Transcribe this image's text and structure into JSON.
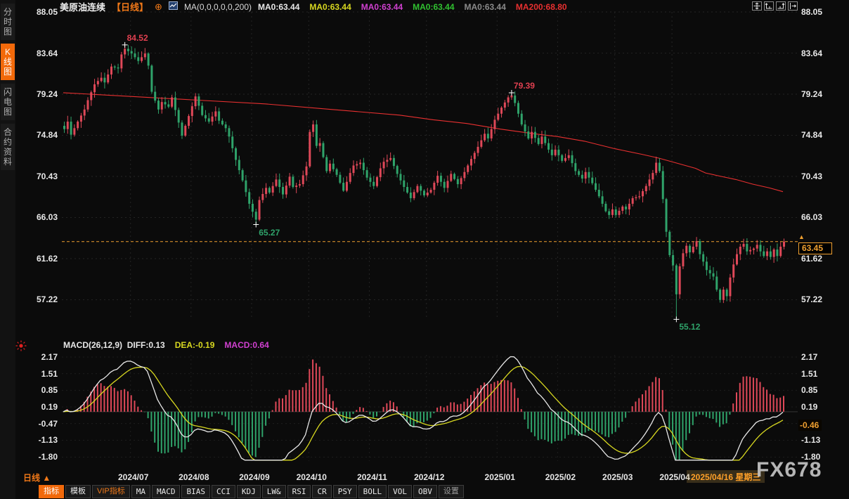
{
  "header": {
    "symbol": "美原油连续",
    "period_tag": "【日线】",
    "plus_icon": "⊕",
    "ma_summary": "MA(0,0,0,0,0,200)",
    "ma_values": [
      {
        "text": "MA0:63.44",
        "color": "#e8e8e8"
      },
      {
        "text": "MA0:63.44",
        "color": "#d8d820"
      },
      {
        "text": "MA0:63.44",
        "color": "#d040d0"
      },
      {
        "text": "MA0:63.44",
        "color": "#30c030"
      },
      {
        "text": "MA0:63.44",
        "color": "#8a8a8a"
      },
      {
        "text": "MA200:68.80",
        "color": "#e83030"
      }
    ],
    "top_right_icons": [
      "move-crosshair-icon",
      "axis-left-icon",
      "axis-right-icon",
      "exit-right-icon"
    ]
  },
  "sidebar": {
    "items": [
      {
        "label": "分时图",
        "active": false
      },
      {
        "label": "K线图",
        "active": true
      },
      {
        "label": "闪电图",
        "active": false
      },
      {
        "label": "合约资料",
        "active": false
      }
    ]
  },
  "macd_header": {
    "formula": "MACD(26,12,9)",
    "diff_label": "DIFF:0.13",
    "dea_label": "DEA:-0.19",
    "macd_label": "MACD:0.64",
    "diff_color": "#e8e8e8",
    "dea_color": "#d8d820",
    "macd_color": "#d040d0"
  },
  "price_tag": {
    "value": "63.45"
  },
  "macd_tag": {
    "value": "-0.46"
  },
  "date_tooltip": "2025/04/16 星期三",
  "watermark": "FX678",
  "bottom": {
    "period_label": "日线",
    "period_arrow": "▲",
    "items": [
      {
        "label": "指标",
        "style": "active"
      },
      {
        "label": "模板",
        "style": "normal"
      },
      {
        "label": "VIP指标",
        "style": "vip"
      },
      {
        "label": "MA",
        "style": "mono"
      },
      {
        "label": "MACD",
        "style": "mono"
      },
      {
        "label": "BIAS",
        "style": "mono"
      },
      {
        "label": "CCI",
        "style": "mono"
      },
      {
        "label": "KDJ",
        "style": "mono"
      },
      {
        "label": "LW&",
        "style": "mono"
      },
      {
        "label": "RSI",
        "style": "mono"
      },
      {
        "label": "CR",
        "style": "mono"
      },
      {
        "label": "PSY",
        "style": "mono"
      },
      {
        "label": "BOLL",
        "style": "mono"
      },
      {
        "label": "VOL",
        "style": "mono"
      },
      {
        "label": "OBV",
        "style": "mono"
      },
      {
        "label": "设置",
        "style": "dim"
      }
    ]
  },
  "chart_data": {
    "type": "candlestick+macd",
    "title": "美原油连续 日线 (WTI crude continuous, daily)",
    "x_ticks": [
      {
        "index": 20,
        "label": "2024/07"
      },
      {
        "index": 38,
        "label": "2024/08"
      },
      {
        "index": 56,
        "label": "2024/09"
      },
      {
        "index": 73,
        "label": "2024/10"
      },
      {
        "index": 91,
        "label": "2024/11"
      },
      {
        "index": 108,
        "label": "2024/12"
      },
      {
        "index": 129,
        "label": "2025/01"
      },
      {
        "index": 147,
        "label": "2025/02"
      },
      {
        "index": 164,
        "label": "2025/03"
      },
      {
        "index": 181,
        "label": "2025/04"
      }
    ],
    "main": {
      "y_ticks": [
        88.05,
        83.64,
        79.24,
        74.84,
        70.43,
        66.03,
        61.62,
        57.22
      ],
      "last_price": 63.45,
      "up_color": "#df4858",
      "down_color": "#2fa36a",
      "last_price_line_color": "#f0a030",
      "num_candles": 215,
      "close_anchors": [
        [
          0,
          75.5
        ],
        [
          1,
          76.3
        ],
        [
          2,
          74.9
        ],
        [
          4,
          76.3
        ],
        [
          6,
          77.6
        ],
        [
          7,
          78.6
        ],
        [
          9,
          80.3
        ],
        [
          11,
          81.0
        ],
        [
          12,
          80.5
        ],
        [
          14,
          82.2
        ],
        [
          16,
          82.0
        ],
        [
          17,
          83.5
        ],
        [
          18,
          84.1
        ],
        [
          20,
          83.6
        ],
        [
          22,
          82.8
        ],
        [
          24,
          83.6
        ],
        [
          25,
          82.3
        ],
        [
          26,
          79.5
        ],
        [
          28,
          77.6
        ],
        [
          29,
          78.4
        ],
        [
          31,
          77.9
        ],
        [
          32,
          78.9
        ],
        [
          34,
          76.2
        ],
        [
          35,
          74.8
        ],
        [
          37,
          76.9
        ],
        [
          39,
          79.0
        ],
        [
          41,
          77.0
        ],
        [
          43,
          76.3
        ],
        [
          45,
          77.4
        ],
        [
          46,
          76.4
        ],
        [
          48,
          75.6
        ],
        [
          49,
          74.7
        ],
        [
          51,
          72.2
        ],
        [
          53,
          70.0
        ],
        [
          55,
          67.5
        ],
        [
          57,
          65.8
        ],
        [
          58,
          67.9
        ],
        [
          60,
          69.2
        ],
        [
          61,
          68.7
        ],
        [
          63,
          70.1
        ],
        [
          65,
          68.5
        ],
        [
          67,
          70.4
        ],
        [
          68,
          69.3
        ],
        [
          70,
          69.6
        ],
        [
          72,
          71.5
        ],
        [
          73,
          75.2
        ],
        [
          74,
          76.0
        ],
        [
          75,
          73.7
        ],
        [
          76,
          74.0
        ],
        [
          78,
          71.0
        ],
        [
          79,
          71.8
        ],
        [
          81,
          70.6
        ],
        [
          83,
          68.9
        ],
        [
          85,
          70.8
        ],
        [
          86,
          71.6
        ],
        [
          88,
          71.9
        ],
        [
          90,
          70.3
        ],
        [
          92,
          69.4
        ],
        [
          94,
          71.3
        ],
        [
          95,
          72.0
        ],
        [
          97,
          72.4
        ],
        [
          99,
          70.7
        ],
        [
          101,
          69.3
        ],
        [
          103,
          68.1
        ],
        [
          105,
          69.4
        ],
        [
          107,
          68.4
        ],
        [
          109,
          69.0
        ],
        [
          111,
          70.5
        ],
        [
          113,
          69.2
        ],
        [
          115,
          70.7
        ],
        [
          117,
          69.6
        ],
        [
          119,
          70.9
        ],
        [
          121,
          72.3
        ],
        [
          123,
          73.6
        ],
        [
          125,
          75.0
        ],
        [
          126,
          74.5
        ],
        [
          128,
          76.5
        ],
        [
          130,
          77.8
        ],
        [
          132,
          78.9
        ],
        [
          133,
          79.1
        ],
        [
          134,
          78.3
        ],
        [
          136,
          76.0
        ],
        [
          138,
          74.5
        ],
        [
          139,
          75.2
        ],
        [
          141,
          73.9
        ],
        [
          142,
          74.7
        ],
        [
          144,
          73.3
        ],
        [
          145,
          72.7
        ],
        [
          146,
          73.3
        ],
        [
          148,
          72.1
        ],
        [
          150,
          72.7
        ],
        [
          152,
          71.0
        ],
        [
          154,
          70.2
        ],
        [
          155,
          70.9
        ],
        [
          157,
          69.7
        ],
        [
          159,
          68.3
        ],
        [
          161,
          66.7
        ],
        [
          162,
          66.3
        ],
        [
          163,
          66.9
        ],
        [
          164,
          66.3
        ],
        [
          166,
          67.2
        ],
        [
          167,
          66.9
        ],
        [
          169,
          68.1
        ],
        [
          171,
          68.3
        ],
        [
          173,
          69.4
        ],
        [
          175,
          70.8
        ],
        [
          176,
          71.9
        ],
        [
          177,
          71.0
        ],
        [
          178,
          68.0
        ],
        [
          179,
          64.5
        ],
        [
          180,
          62.0
        ],
        [
          181,
          60.9
        ],
        [
          182,
          57.8
        ],
        [
          183,
          60.8
        ],
        [
          184,
          62.2
        ],
        [
          185,
          63.0
        ],
        [
          186,
          62.3
        ],
        [
          187,
          62.9
        ],
        [
          188,
          63.5
        ],
        [
          189,
          62.1
        ],
        [
          190,
          61.3
        ],
        [
          191,
          60.4
        ],
        [
          193,
          59.7
        ],
        [
          194,
          58.3
        ],
        [
          195,
          57.2
        ],
        [
          196,
          58.3
        ],
        [
          197,
          57.6
        ],
        [
          198,
          59.6
        ],
        [
          199,
          61.0
        ],
        [
          200,
          62.1
        ],
        [
          201,
          62.9
        ],
        [
          202,
          63.2
        ],
        [
          203,
          62.4
        ],
        [
          205,
          62.7
        ],
        [
          206,
          63.1
        ],
        [
          207,
          62.4
        ],
        [
          208,
          61.9
        ],
        [
          209,
          62.4
        ],
        [
          210,
          61.8
        ],
        [
          211,
          62.6
        ],
        [
          212,
          61.9
        ],
        [
          213,
          62.9
        ],
        [
          214,
          63.45
        ]
      ],
      "annotations": [
        {
          "index": 18,
          "value": 84.52,
          "kind": "high",
          "label": "84.52"
        },
        {
          "index": 57,
          "value": 65.27,
          "kind": "low",
          "label": "65.27"
        },
        {
          "index": 133,
          "value": 79.39,
          "kind": "high",
          "label": "79.39"
        },
        {
          "index": 182,
          "value": 55.12,
          "kind": "low",
          "label": "55.12"
        }
      ],
      "ma200": {
        "color": "#e83030",
        "last_value": 68.8,
        "points": [
          [
            0,
            79.4
          ],
          [
            20,
            79.0
          ],
          [
            40,
            78.6
          ],
          [
            60,
            78.2
          ],
          [
            80,
            77.6
          ],
          [
            100,
            77.0
          ],
          [
            110,
            76.5
          ],
          [
            120,
            76.1
          ],
          [
            130,
            75.5
          ],
          [
            140,
            75.0
          ],
          [
            147,
            74.7
          ],
          [
            155,
            74.2
          ],
          [
            164,
            73.4
          ],
          [
            172,
            72.8
          ],
          [
            177,
            72.4
          ],
          [
            182,
            71.9
          ],
          [
            188,
            71.3
          ],
          [
            191,
            70.8
          ],
          [
            196,
            70.4
          ],
          [
            200,
            70.1
          ],
          [
            205,
            69.6
          ],
          [
            210,
            69.2
          ],
          [
            214,
            68.8
          ]
        ]
      }
    },
    "macd": {
      "params": [
        26,
        12,
        9
      ],
      "diff": 0.13,
      "dea": -0.19,
      "macd": 0.64,
      "y_ticks": [
        2.17,
        1.51,
        0.85,
        0.19,
        -0.47,
        -1.13,
        -1.8
      ],
      "diff_line_color": "#e8e8e8",
      "dea_line_color": "#d8d820",
      "pos_bar_color": "#df4858",
      "neg_bar_color": "#2fa36a"
    }
  }
}
